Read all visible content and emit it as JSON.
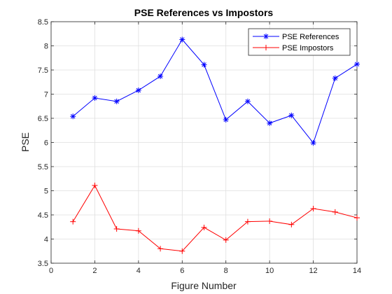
{
  "chart_data": {
    "type": "line",
    "title": "PSE References vs Impostors",
    "xlabel": "Figure Number",
    "ylabel": "PSE",
    "xlim": [
      0,
      14
    ],
    "ylim": [
      3.5,
      8.5
    ],
    "xticks": [
      "0",
      "2",
      "4",
      "6",
      "8",
      "10",
      "12",
      "14"
    ],
    "yticks": [
      "3.5",
      "4",
      "4.5",
      "5",
      "5.5",
      "6",
      "6.5",
      "7",
      "7.5",
      "8",
      "8.5"
    ],
    "grid": true,
    "legend_position": "top-right",
    "x": [
      1,
      2,
      3,
      4,
      5,
      6,
      7,
      8,
      9,
      10,
      11,
      12,
      13,
      14
    ],
    "series": [
      {
        "name": "PSE References",
        "color": "#0000ff",
        "marker": "asterisk",
        "values": [
          6.54,
          6.92,
          6.85,
          7.08,
          7.37,
          8.13,
          7.61,
          6.47,
          6.85,
          6.4,
          6.56,
          5.99,
          7.33,
          7.62
        ]
      },
      {
        "name": "PSE Impostors",
        "color": "#ff0000",
        "marker": "plus",
        "values": [
          4.36,
          5.11,
          4.21,
          4.17,
          3.8,
          3.75,
          4.24,
          3.98,
          4.36,
          4.37,
          4.3,
          4.63,
          4.56,
          4.44
        ]
      }
    ]
  }
}
